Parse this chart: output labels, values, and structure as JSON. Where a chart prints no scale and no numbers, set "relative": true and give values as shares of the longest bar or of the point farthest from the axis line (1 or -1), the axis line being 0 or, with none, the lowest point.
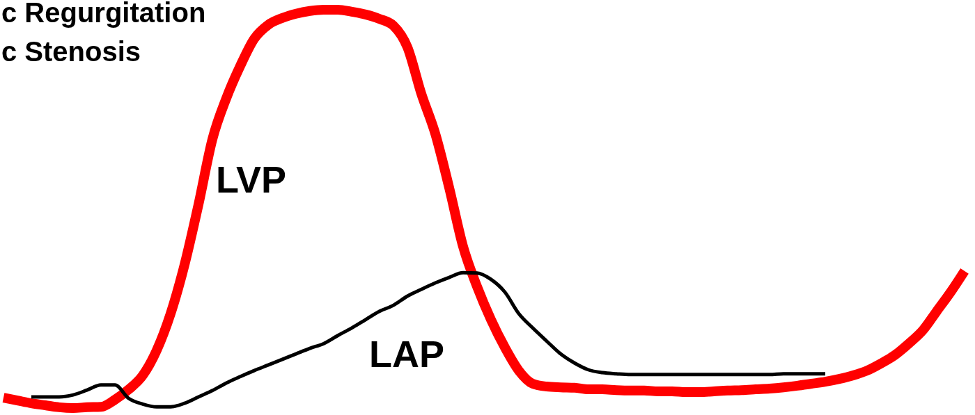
{
  "chart_data": {
    "type": "line",
    "title": "c Regurgitation",
    "subtitle": "c Stenosis",
    "relative": true,
    "categories": [
      null,
      null,
      null,
      null,
      null,
      null,
      null,
      null,
      null,
      null,
      null,
      null,
      null,
      null,
      null,
      null,
      null,
      null,
      null,
      null,
      null,
      null,
      null,
      null,
      null,
      null,
      null,
      null,
      null,
      null,
      null,
      null,
      null,
      null,
      null,
      null,
      null,
      null,
      null,
      null,
      null,
      null,
      null,
      null,
      null,
      null,
      null,
      null,
      null,
      null,
      null,
      null,
      null,
      null,
      null,
      null,
      null,
      null,
      null,
      null,
      null,
      null,
      null,
      null,
      null,
      null,
      null,
      null,
      null,
      null
    ],
    "series": [
      {
        "name": "LVP",
        "color": "#ff0000",
        "values": [
          0.026,
          0.019,
          0.012,
          0.007,
          0.002,
          0,
          0.002,
          0.003,
          0.021,
          0.047,
          0.082,
          0.145,
          0.237,
          0.36,
          0.511,
          0.675,
          0.778,
          0.859,
          0.927,
          0.962,
          0.979,
          0.99,
          0.997,
          1,
          1,
          0.995,
          0.988,
          0.977,
          0.96,
          0.906,
          0.789,
          0.689,
          0.553,
          0.405,
          0.305,
          0.222,
          0.152,
          0.094,
          0.061,
          0.054,
          0.052,
          0.051,
          0.047,
          0.047,
          0.045,
          0.044,
          0.044,
          0.042,
          0.042,
          0.04,
          0.04,
          0.042,
          0.044,
          0.045,
          0.047,
          0.049,
          0.052,
          0.056,
          0.061,
          0.066,
          0.073,
          0.082,
          0.094,
          0.112,
          0.133,
          0.162,
          0.195,
          0.243,
          0.291,
          0.344
        ]
      },
      {
        "name": "LAP",
        "color": "#000000",
        "values": [
          null,
          null,
          0.028,
          0.028,
          0.028,
          0.033,
          0.045,
          0.058,
          0.058,
          0.024,
          0.01,
          0.003,
          0.003,
          0.012,
          0.028,
          0.044,
          0.063,
          0.079,
          0.094,
          0.108,
          0.122,
          0.136,
          0.15,
          0.162,
          0.182,
          0.201,
          0.222,
          0.243,
          0.258,
          0.281,
          0.298,
          0.314,
          0.328,
          0.34,
          0.339,
          0.323,
          0.291,
          0.237,
          0.201,
          0.168,
          0.136,
          0.113,
          0.096,
          0.089,
          0.086,
          0.084,
          0.084,
          0.084,
          0.084,
          0.084,
          0.084,
          0.084,
          0.084,
          0.084,
          0.084,
          0.084,
          0.086,
          0.086,
          0.086,
          0.086,
          null,
          null,
          null,
          null,
          null,
          null,
          null,
          null,
          null,
          null
        ]
      }
    ]
  }
}
